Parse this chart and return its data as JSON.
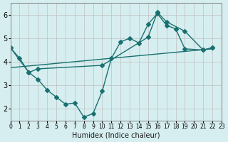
{
  "bg_color": "#d6eef0",
  "grid_color": "#c0c0c0",
  "line_color": "#1a7070",
  "xlabel": "Humidex (Indice chaleur)",
  "xlim": [
    0,
    23
  ],
  "ylim": [
    1.5,
    6.5
  ],
  "xticks": [
    0,
    1,
    2,
    3,
    4,
    5,
    6,
    7,
    8,
    9,
    10,
    11,
    12,
    13,
    14,
    15,
    16,
    17,
    18,
    19,
    20,
    21,
    22,
    23
  ],
  "yticks": [
    2,
    3,
    4,
    5,
    6
  ],
  "line1_x": [
    0,
    1,
    2,
    3,
    4,
    5,
    6,
    7,
    8,
    9,
    10,
    11,
    12,
    13,
    14,
    15,
    16,
    17,
    18,
    19,
    21,
    22
  ],
  "line1_y": [
    4.6,
    4.15,
    3.55,
    3.25,
    2.8,
    2.5,
    2.2,
    2.25,
    1.65,
    1.8,
    2.75,
    4.15,
    4.85,
    5.0,
    4.8,
    5.6,
    6.05,
    5.55,
    5.4,
    4.55,
    4.5,
    4.6
  ],
  "line2_x": [
    0,
    2,
    3,
    10,
    15,
    16,
    17,
    19,
    21,
    22
  ],
  "line2_y": [
    4.6,
    3.55,
    3.7,
    3.85,
    5.05,
    6.1,
    5.7,
    5.3,
    4.5,
    4.6
  ],
  "line3_x": [
    0,
    22
  ],
  "line3_y": [
    3.75,
    4.55
  ],
  "markersize": 3
}
